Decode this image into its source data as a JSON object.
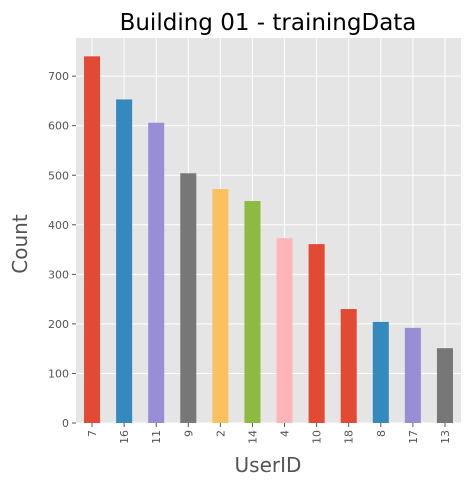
{
  "chart_data": {
    "type": "bar",
    "title": "Building 01 - trainingData",
    "xlabel": "UserID",
    "ylabel": "Count",
    "categories": [
      "7",
      "16",
      "11",
      "9",
      "2",
      "14",
      "4",
      "10",
      "18",
      "8",
      "17",
      "13"
    ],
    "values": [
      740,
      653,
      606,
      504,
      472,
      448,
      373,
      361,
      230,
      204,
      192,
      151
    ],
    "colors": [
      "#E24A33",
      "#348ABD",
      "#988ED5",
      "#777777",
      "#FBC15E",
      "#8EBA42",
      "#FFB5B8",
      "#E24A33",
      "#E24A33",
      "#348ABD",
      "#988ED5",
      "#777777"
    ],
    "ylim": [
      0,
      777
    ],
    "yticks": [
      0,
      100,
      200,
      300,
      400,
      500,
      600,
      700
    ],
    "grid": true,
    "legend": "none",
    "style": {
      "plot_background": "#E5E5E5",
      "grid_color": "#FFFFFF"
    }
  }
}
